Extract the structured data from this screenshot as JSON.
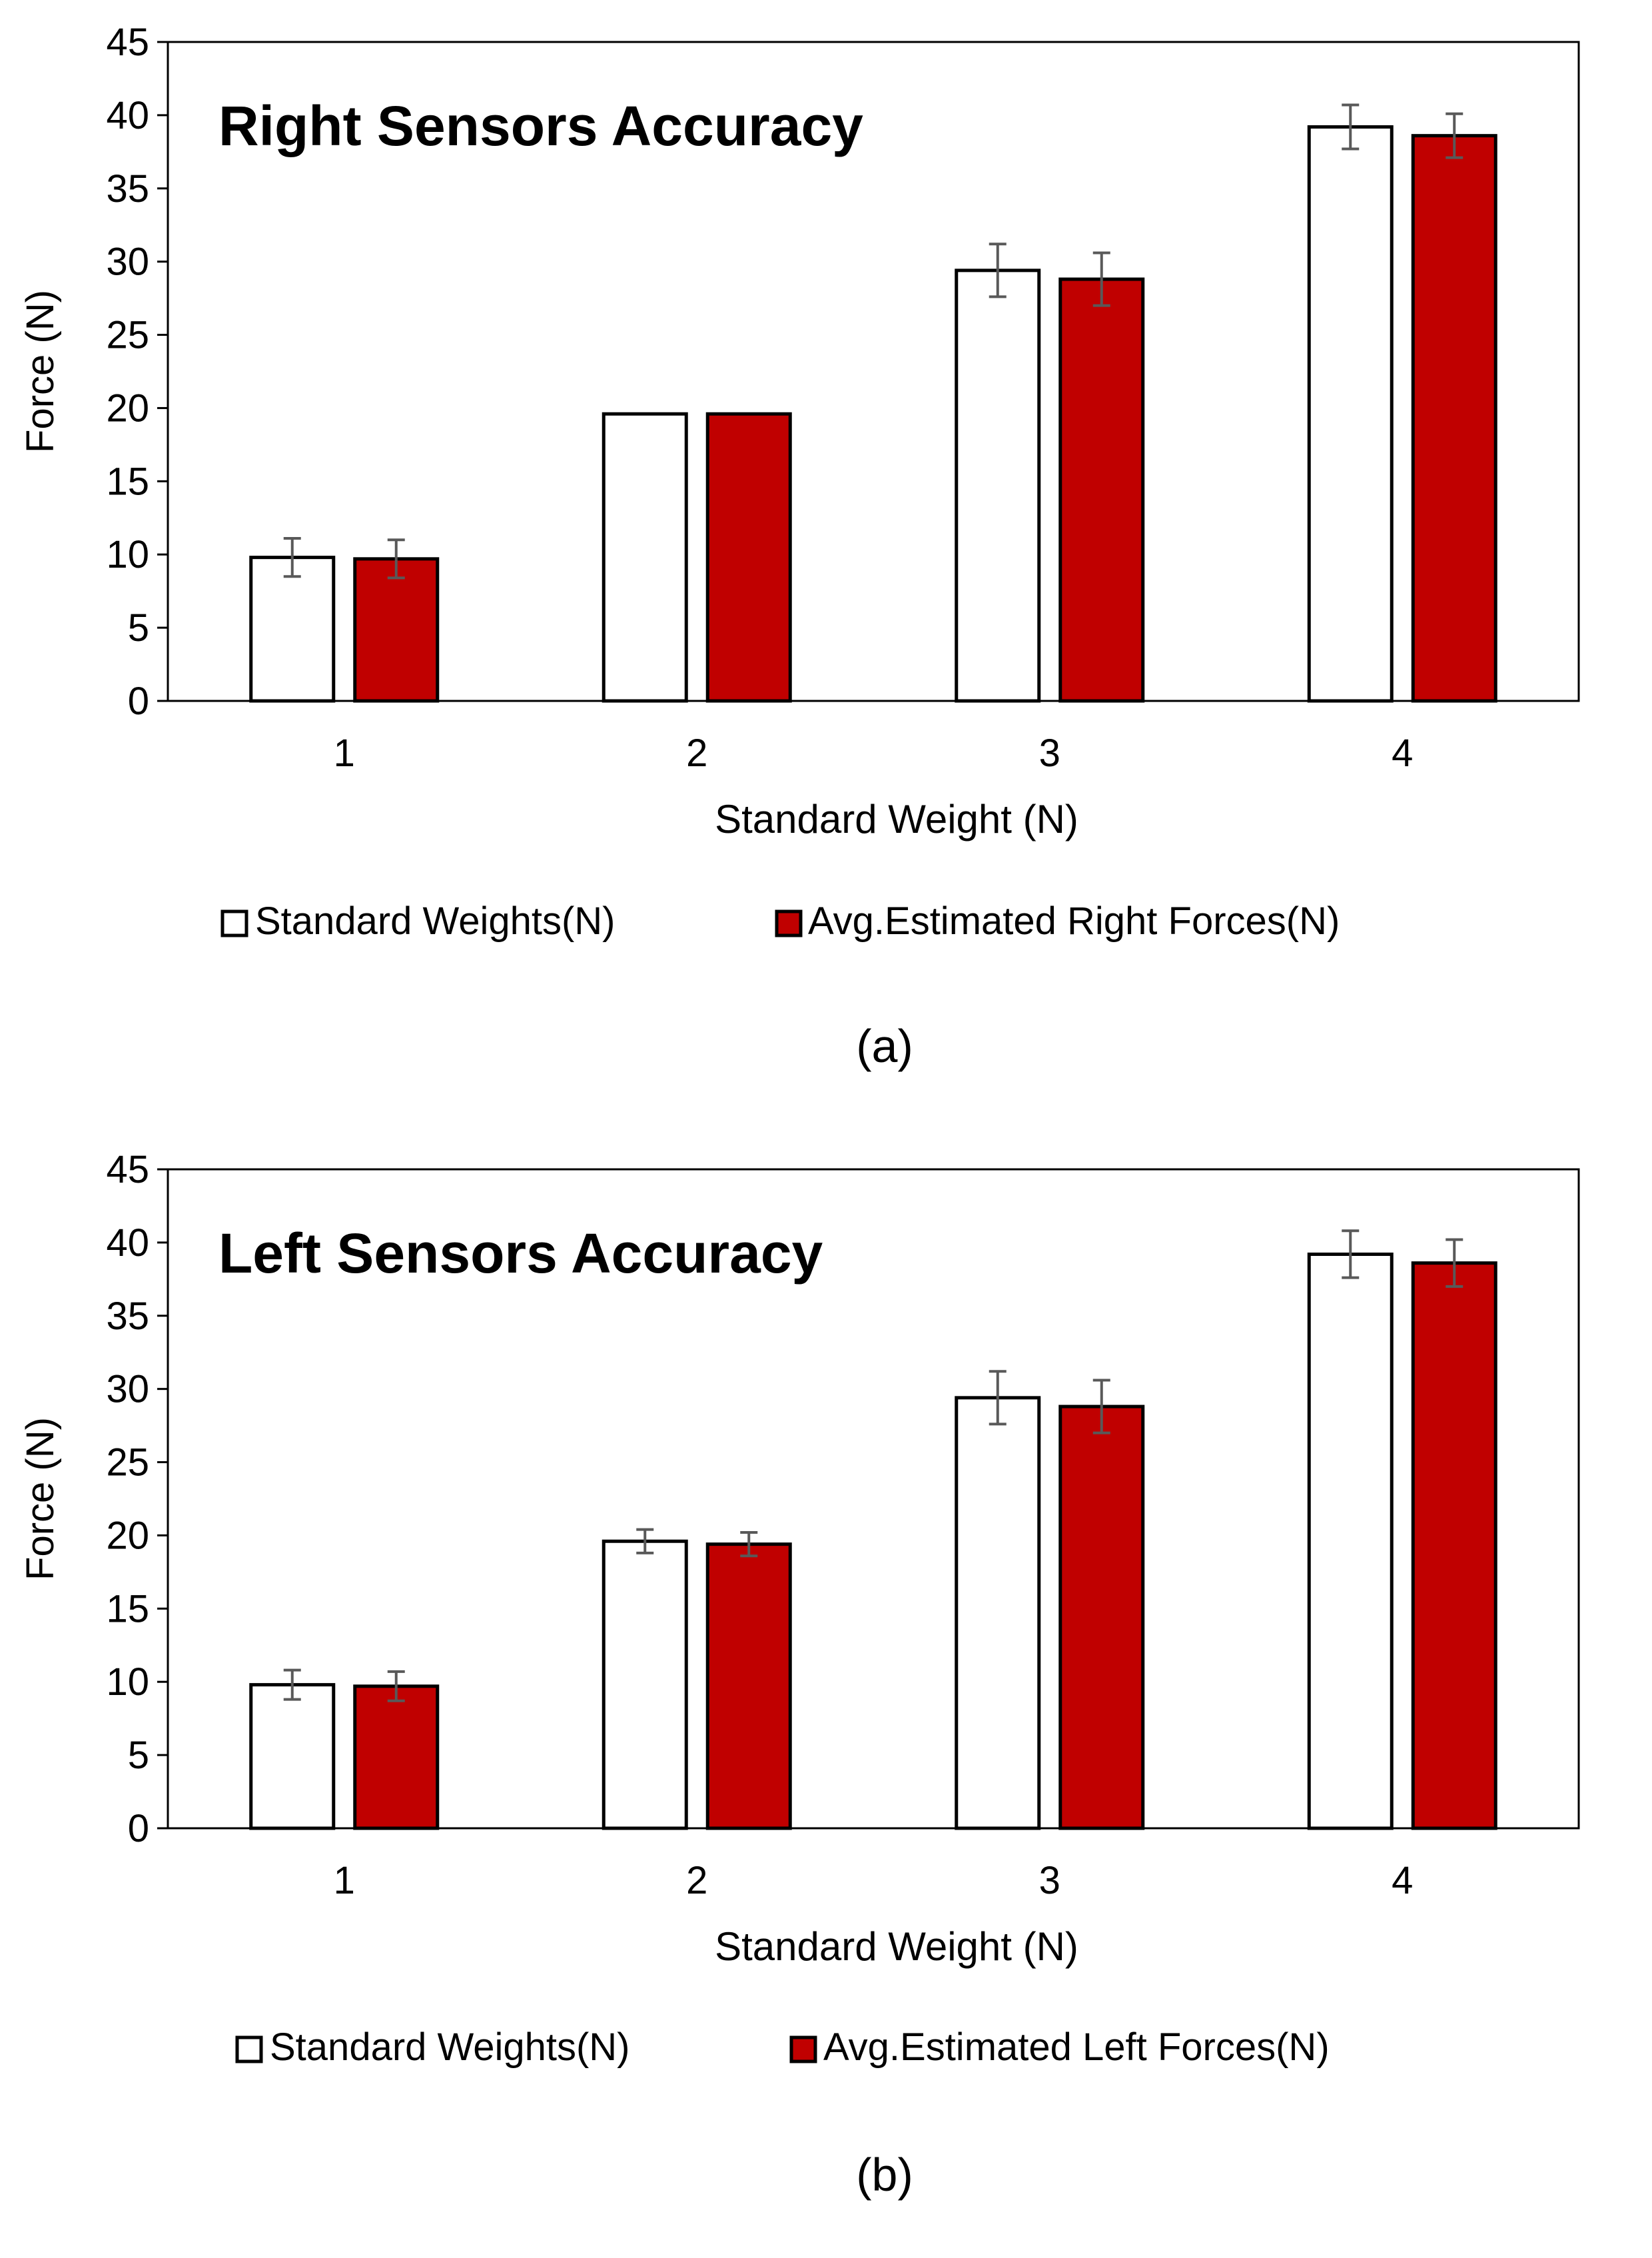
{
  "chart_data": [
    {
      "type": "bar",
      "title": "Right Sensors Accuracy",
      "xlabel": "Standard Weight (N)",
      "ylabel": "Force (N)",
      "categories": [
        "1",
        "2",
        "3",
        "4"
      ],
      "ylim": [
        0,
        45
      ],
      "yticks": [
        "0",
        "5",
        "10",
        "15",
        "20",
        "25",
        "30",
        "35",
        "40",
        "45"
      ],
      "grid": false,
      "legend_position": "bottom",
      "panel_label": "(a)",
      "series": [
        {
          "name": "Standard Weights(N)",
          "color": "#ffffff",
          "stroke": "#000000",
          "values": [
            9.8,
            19.6,
            29.4,
            39.2
          ],
          "errors": [
            1.3,
            0.0,
            1.8,
            1.5
          ]
        },
        {
          "name": "Avg.Estimated Right Forces(N)",
          "color": "#c00000",
          "stroke": "#000000",
          "values": [
            9.7,
            19.6,
            28.8,
            38.6
          ],
          "errors": [
            1.3,
            0.0,
            1.8,
            1.5
          ]
        }
      ]
    },
    {
      "type": "bar",
      "title": "Left Sensors Accuracy",
      "xlabel": "Standard Weight (N)",
      "ylabel": "Force (N)",
      "categories": [
        "1",
        "2",
        "3",
        "4"
      ],
      "ylim": [
        0,
        45
      ],
      "yticks": [
        "0",
        "5",
        "10",
        "15",
        "20",
        "25",
        "30",
        "35",
        "40",
        "45"
      ],
      "grid": false,
      "legend_position": "bottom",
      "panel_label": "(b)",
      "series": [
        {
          "name": "Standard Weights(N)",
          "color": "#ffffff",
          "stroke": "#000000",
          "values": [
            9.8,
            19.6,
            29.4,
            39.2
          ],
          "errors": [
            1.0,
            0.8,
            1.8,
            1.6
          ]
        },
        {
          "name": "Avg.Estimated Left Forces(N)",
          "color": "#c00000",
          "stroke": "#000000",
          "values": [
            9.7,
            19.4,
            28.8,
            38.6
          ],
          "errors": [
            1.0,
            0.8,
            1.8,
            1.6
          ]
        }
      ]
    }
  ]
}
